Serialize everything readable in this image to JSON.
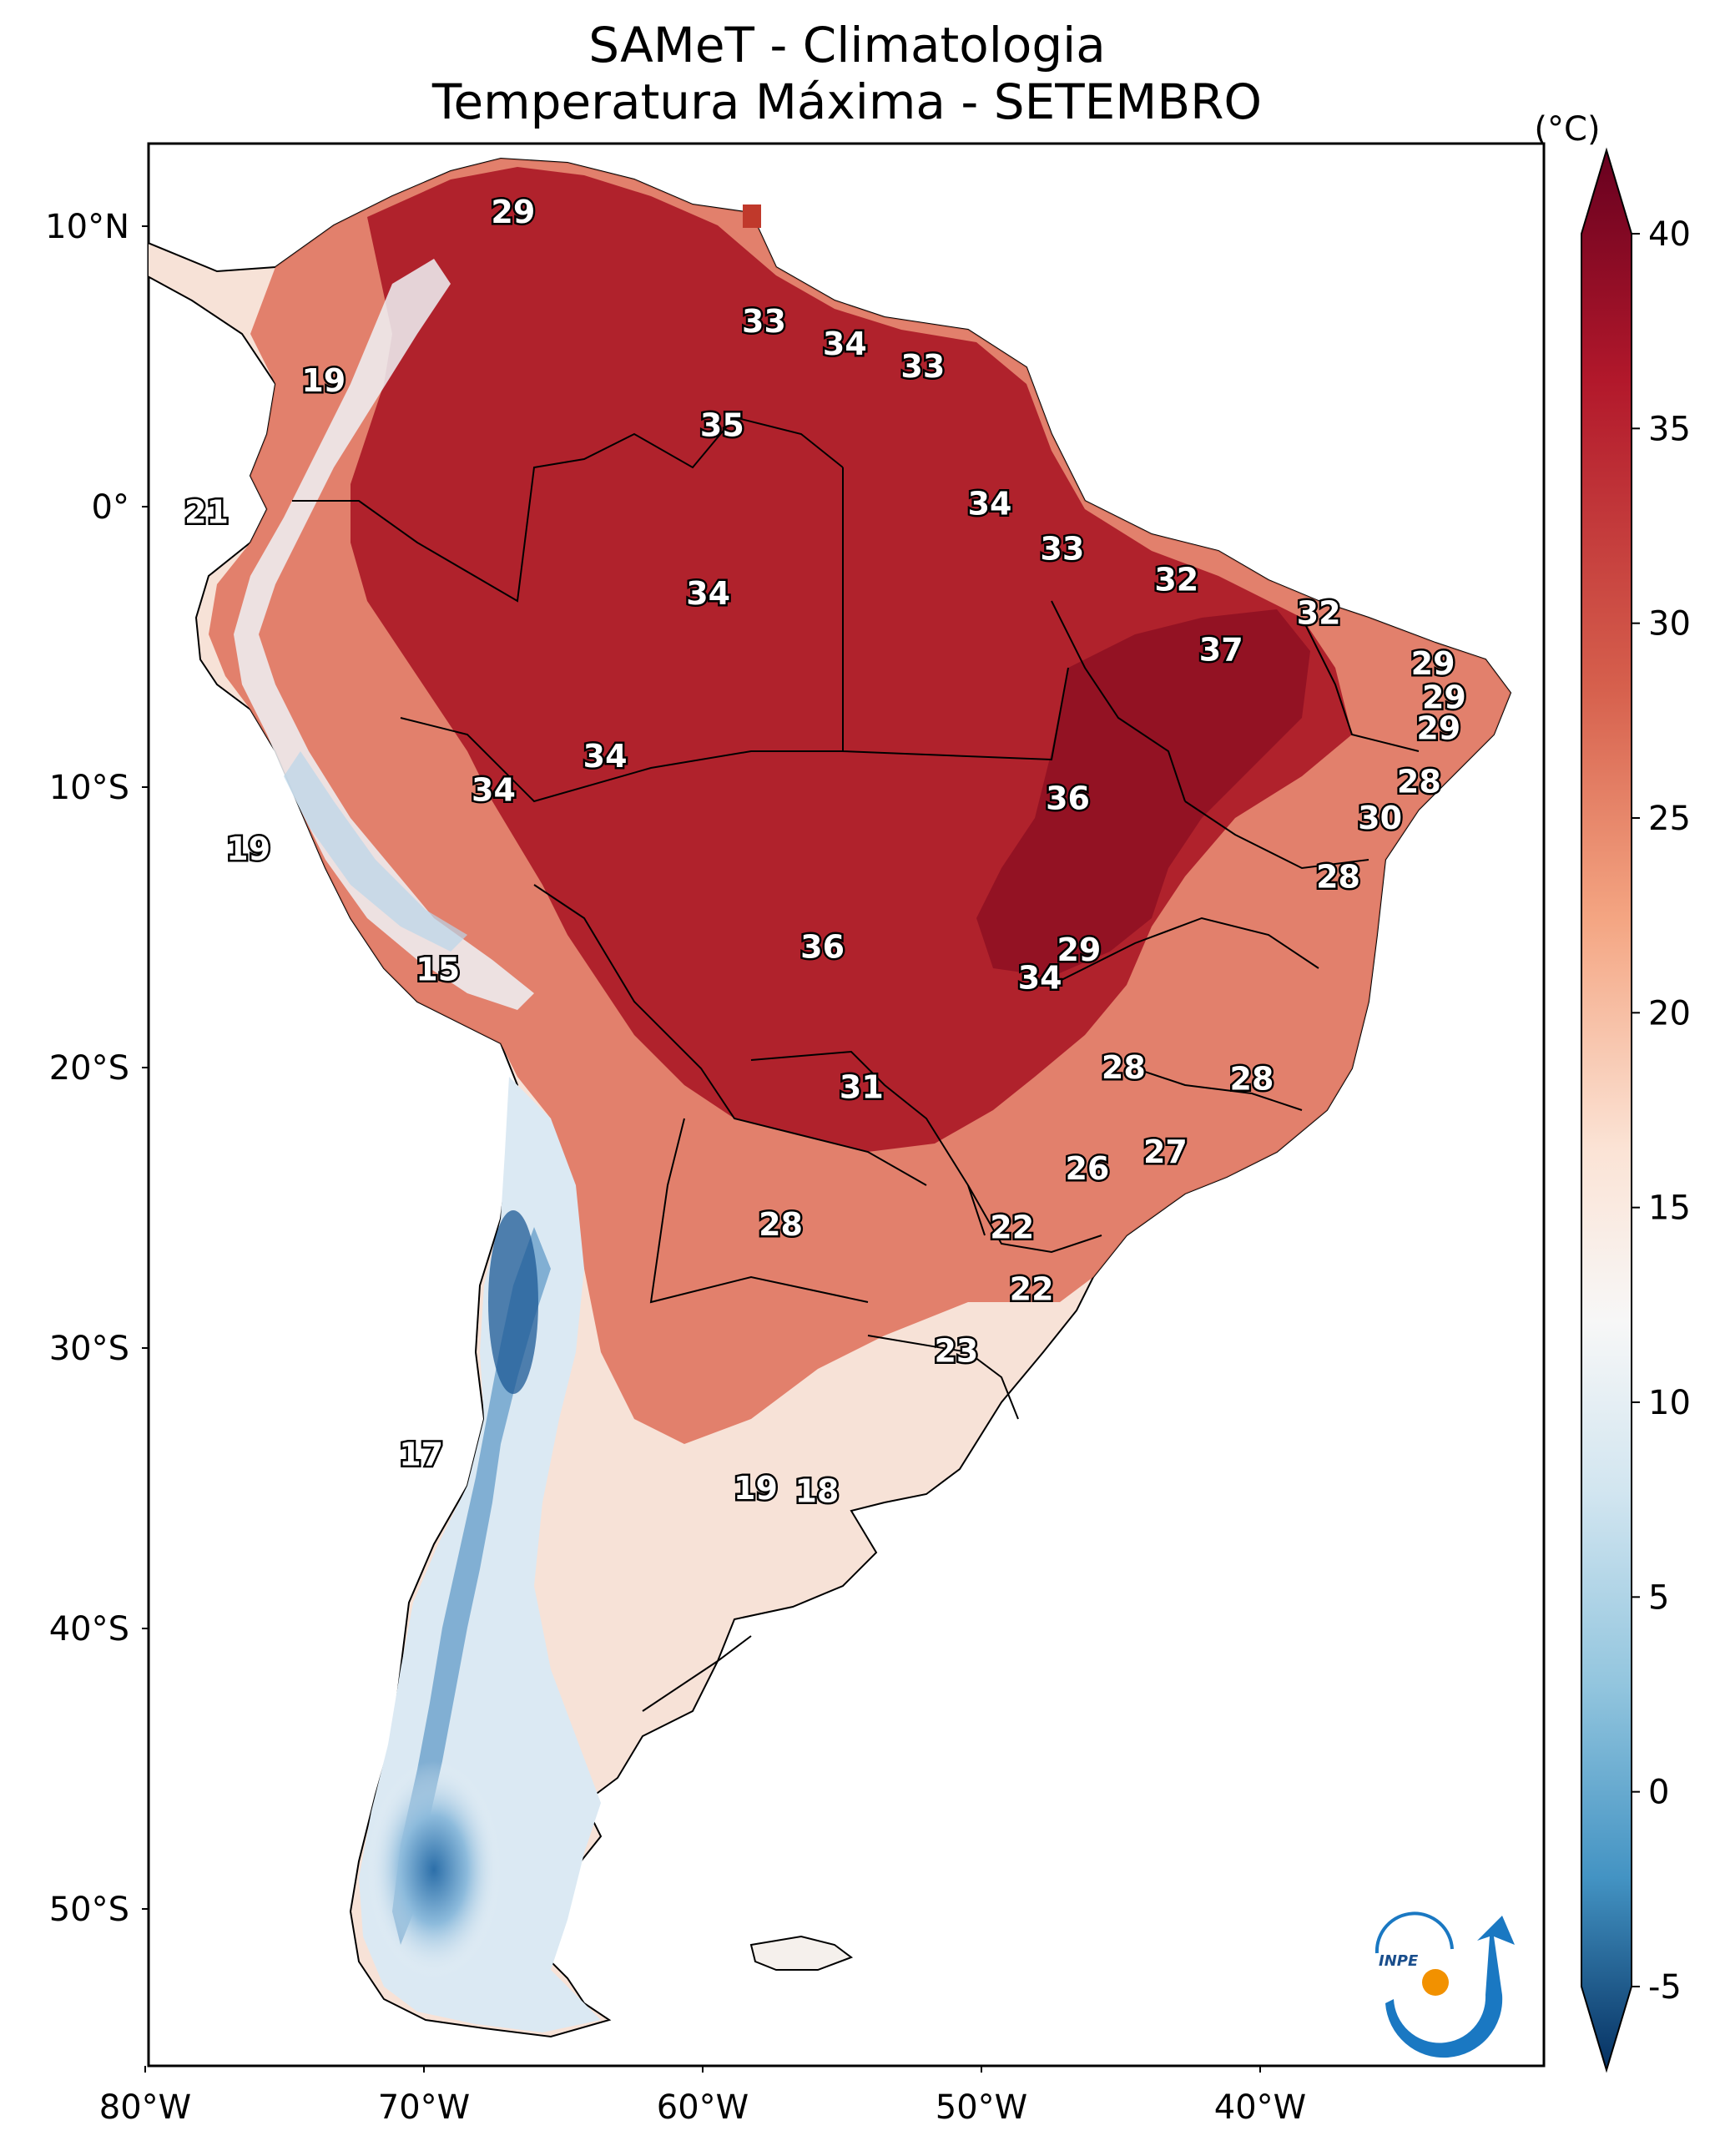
{
  "title": {
    "line1": "SAMeT - Climatologia",
    "line2": "Temperatura Máxima - SETEMBRO"
  },
  "colorbar": {
    "unit": "(°C)",
    "ticks": [
      "40",
      "35",
      "30",
      "25",
      "20",
      "15",
      "10",
      "5",
      "0",
      "-5"
    ],
    "min": -5,
    "max": 40,
    "colormap": "RdBu_r"
  },
  "axes": {
    "lat_ticks": [
      "10°N",
      "0°",
      "10°S",
      "20°S",
      "30°S",
      "40°S",
      "50°S"
    ],
    "lon_ticks": [
      "80°W",
      "70°W",
      "60°W",
      "50°W",
      "40°W"
    ]
  },
  "map_labels": [
    {
      "value": "29",
      "lon": -66.8,
      "lat": 10.5
    },
    {
      "value": "33",
      "lon": -57.8,
      "lat": 6.6
    },
    {
      "value": "34",
      "lon": -54.9,
      "lat": 5.8
    },
    {
      "value": "33",
      "lon": -52.1,
      "lat": 5.0
    },
    {
      "value": "19",
      "lon": -73.6,
      "lat": 4.5
    },
    {
      "value": "35",
      "lon": -59.3,
      "lat": 2.9
    },
    {
      "value": "34",
      "lon": -49.7,
      "lat": 0.1
    },
    {
      "value": "21",
      "lon": -77.8,
      "lat": -0.2
    },
    {
      "value": "33",
      "lon": -47.1,
      "lat": -1.5
    },
    {
      "value": "32",
      "lon": -43.0,
      "lat": -2.6
    },
    {
      "value": "34",
      "lon": -59.8,
      "lat": -3.1
    },
    {
      "value": "32",
      "lon": -37.9,
      "lat": -3.8
    },
    {
      "value": "37",
      "lon": -41.4,
      "lat": -5.1
    },
    {
      "value": "29",
      "lon": -33.8,
      "lat": -5.6
    },
    {
      "value": "29",
      "lon": -33.4,
      "lat": -6.8
    },
    {
      "value": "29",
      "lon": -33.6,
      "lat": -7.9
    },
    {
      "value": "34",
      "lon": -63.5,
      "lat": -8.9
    },
    {
      "value": "36",
      "lon": -46.9,
      "lat": -10.4
    },
    {
      "value": "28",
      "lon": -34.3,
      "lat": -9.8
    },
    {
      "value": "34",
      "lon": -67.5,
      "lat": -10.1
    },
    {
      "value": "30",
      "lon": -35.7,
      "lat": -11.1
    },
    {
      "value": "19",
      "lon": -76.3,
      "lat": -12.2
    },
    {
      "value": "28",
      "lon": -37.2,
      "lat": -13.2
    },
    {
      "value": "36",
      "lon": -55.7,
      "lat": -15.7
    },
    {
      "value": "29",
      "lon": -46.5,
      "lat": -15.8
    },
    {
      "value": "34",
      "lon": -47.9,
      "lat": -16.8
    },
    {
      "value": "15",
      "lon": -69.5,
      "lat": -16.5
    },
    {
      "value": "28",
      "lon": -44.9,
      "lat": -20.0
    },
    {
      "value": "28",
      "lon": -40.3,
      "lat": -20.4
    },
    {
      "value": "31",
      "lon": -54.3,
      "lat": -20.7
    },
    {
      "value": "27",
      "lon": -43.4,
      "lat": -23.0
    },
    {
      "value": "26",
      "lon": -46.2,
      "lat": -23.6
    },
    {
      "value": "28",
      "lon": -57.2,
      "lat": -25.6
    },
    {
      "value": "22",
      "lon": -48.9,
      "lat": -25.7
    },
    {
      "value": "22",
      "lon": -48.2,
      "lat": -27.9
    },
    {
      "value": "23",
      "lon": -50.9,
      "lat": -30.1
    },
    {
      "value": "17",
      "lon": -70.1,
      "lat": -33.8
    },
    {
      "value": "19",
      "lon": -58.1,
      "lat": -35.0
    },
    {
      "value": "18",
      "lon": -55.9,
      "lat": -35.1
    }
  ],
  "logo": {
    "text": "INPE"
  },
  "colors": {
    "hot": "#a50f20",
    "warm": "#e06a55",
    "mild": "#f9e2d6",
    "cool": "#e8f0f6",
    "cold": "#6aa0cb",
    "ocean": "#ffffff",
    "logo_blue": "#1a78c2",
    "logo_orange": "#f29100"
  }
}
